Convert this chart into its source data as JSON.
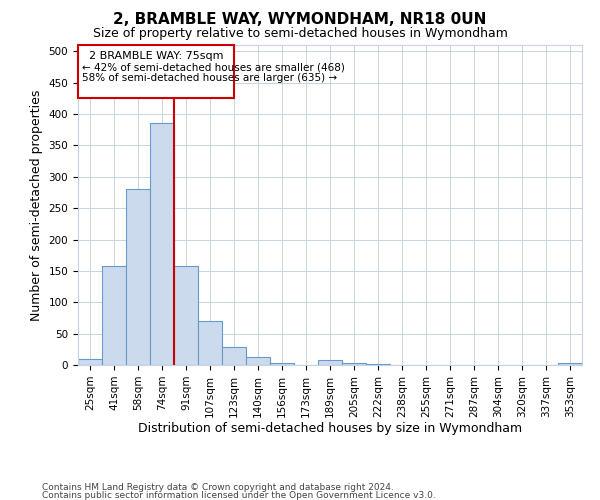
{
  "title": "2, BRAMBLE WAY, WYMONDHAM, NR18 0UN",
  "subtitle": "Size of property relative to semi-detached houses in Wymondham",
  "xlabel": "Distribution of semi-detached houses by size in Wymondham",
  "ylabel": "Number of semi-detached properties",
  "categories": [
    "25sqm",
    "41sqm",
    "58sqm",
    "74sqm",
    "91sqm",
    "107sqm",
    "123sqm",
    "140sqm",
    "156sqm",
    "173sqm",
    "189sqm",
    "205sqm",
    "222sqm",
    "238sqm",
    "255sqm",
    "271sqm",
    "287sqm",
    "304sqm",
    "320sqm",
    "337sqm",
    "353sqm"
  ],
  "values": [
    10,
    157,
    280,
    385,
    157,
    70,
    28,
    13,
    3,
    0,
    8,
    3,
    2,
    0,
    0,
    0,
    0,
    0,
    0,
    0,
    3
  ],
  "bar_color": "#ccdaed",
  "bar_edge_color": "#6699cc",
  "ylim": [
    0,
    510
  ],
  "yticks": [
    0,
    50,
    100,
    150,
    200,
    250,
    300,
    350,
    400,
    450,
    500
  ],
  "property_bin_index": 3,
  "annotation_title": "2 BRAMBLE WAY: 75sqm",
  "annotation_line1": "← 42% of semi-detached houses are smaller (468)",
  "annotation_line2": "58% of semi-detached houses are larger (635) →",
  "vline_color": "#cc0000",
  "annotation_box_color": "#cc0000",
  "footer_line1": "Contains HM Land Registry data © Crown copyright and database right 2024.",
  "footer_line2": "Contains public sector information licensed under the Open Government Licence v3.0.",
  "title_fontsize": 11,
  "subtitle_fontsize": 9,
  "axis_label_fontsize": 9,
  "tick_fontsize": 7.5,
  "footer_fontsize": 6.5
}
